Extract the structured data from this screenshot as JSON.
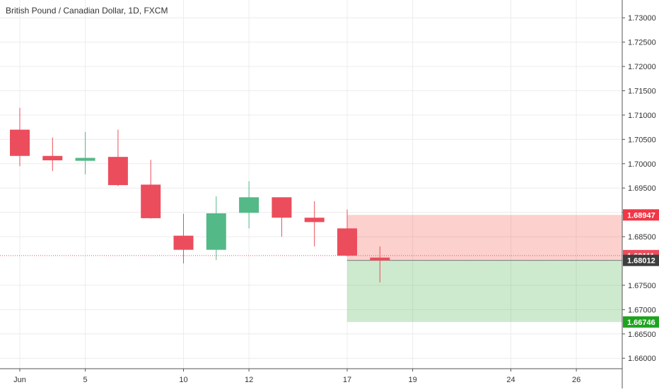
{
  "chart_data": {
    "type": "candlestick",
    "title": "British Pound / Canadian Dollar, 1D, FXCM",
    "ylim": [
      1.6565,
      1.7325
    ],
    "y_ticks": [
      "1.73000",
      "1.72500",
      "1.72000",
      "1.71500",
      "1.71000",
      "1.70500",
      "1.70000",
      "1.69500",
      "1.69000",
      "1.68500",
      "1.67500",
      "1.67000",
      "1.66500",
      "1.66000"
    ],
    "x_ticks": [
      {
        "label": "Jun",
        "day": 0
      },
      {
        "label": "5",
        "day": 2
      },
      {
        "label": "10",
        "day": 5
      },
      {
        "label": "12",
        "day": 7
      },
      {
        "label": "17",
        "day": 10
      },
      {
        "label": "19",
        "day": 12
      },
      {
        "label": "24",
        "day": 15
      },
      {
        "label": "26",
        "day": 17
      }
    ],
    "candles": [
      {
        "day": 0,
        "open": 1.707,
        "high": 1.7115,
        "low": 1.6995,
        "close": 1.7016
      },
      {
        "day": 1,
        "open": 1.7016,
        "high": 1.7054,
        "low": 1.6985,
        "close": 1.7007
      },
      {
        "day": 2,
        "open": 1.7006,
        "high": 1.7065,
        "low": 1.6978,
        "close": 1.7012
      },
      {
        "day": 3,
        "open": 1.7014,
        "high": 1.707,
        "low": 1.6954,
        "close": 1.6956
      },
      {
        "day": 4,
        "open": 1.6957,
        "high": 1.7008,
        "low": 1.6887,
        "close": 1.6888
      },
      {
        "day": 5,
        "open": 1.6852,
        "high": 1.6897,
        "low": 1.6795,
        "close": 1.6823
      },
      {
        "day": 6,
        "open": 1.6823,
        "high": 1.6933,
        "low": 1.6802,
        "close": 1.6898
      },
      {
        "day": 7,
        "open": 1.6899,
        "high": 1.6964,
        "low": 1.6867,
        "close": 1.6931
      },
      {
        "day": 8,
        "open": 1.6931,
        "high": 1.6931,
        "low": 1.685,
        "close": 1.6889
      },
      {
        "day": 9,
        "open": 1.6889,
        "high": 1.6923,
        "low": 1.683,
        "close": 1.688
      },
      {
        "day": 10,
        "open": 1.6867,
        "high": 1.6906,
        "low": 1.681,
        "close": 1.6811
      },
      {
        "day": 11,
        "open": 1.6807,
        "high": 1.683,
        "low": 1.6756,
        "close": 1.68012
      }
    ],
    "position": {
      "start_day": 10,
      "end_day": 19,
      "stop": 1.68947,
      "entry": 1.68012,
      "target": 1.66746
    },
    "labels": {
      "stop": "1.68947",
      "current": "1.68111",
      "entry": "1.68012",
      "target": "1.66746"
    },
    "current_price": 1.68111,
    "colors": {
      "up": "#53b987",
      "down": "#eb4d5c",
      "grid": "#ececec",
      "stop_zone": "rgba(244, 67, 54, 0.25)",
      "target_zone": "rgba(76, 175, 80, 0.28)",
      "stop_label": "#f23645",
      "current_label": "#eb4d5c",
      "entry_label": "#3d3d3d",
      "target_label": "#1fa31f",
      "current_line": "#eb4d5c",
      "axis_text": "#333333"
    }
  }
}
